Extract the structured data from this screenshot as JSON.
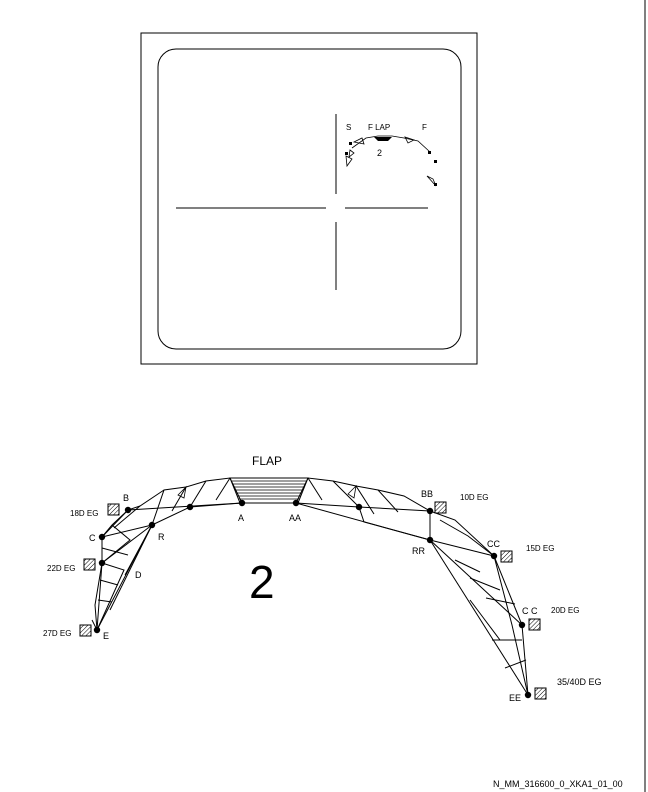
{
  "display": {
    "label_s": "S",
    "label_flap": "F LAP",
    "label_f": "F",
    "flap_position": "2"
  },
  "diagram": {
    "title": "FLAP",
    "position_number": "2",
    "points": {
      "b": "B",
      "c": "C",
      "r": "R",
      "d": "D",
      "e": "E",
      "a": "A",
      "aa": "AA",
      "bb": "BB",
      "rr": "RR",
      "cc1": "CC",
      "cc2": "C C",
      "ee": "EE"
    },
    "angles": {
      "left_18": "18D EG",
      "left_22": "22D EG",
      "left_27": "27D EG",
      "right_10": "10D EG",
      "right_15": "15D EG",
      "right_20": "20D EG",
      "right_35_40": "35/40D EG"
    }
  },
  "figure_id": "N_MM_316600_0_XKA1_01_00"
}
